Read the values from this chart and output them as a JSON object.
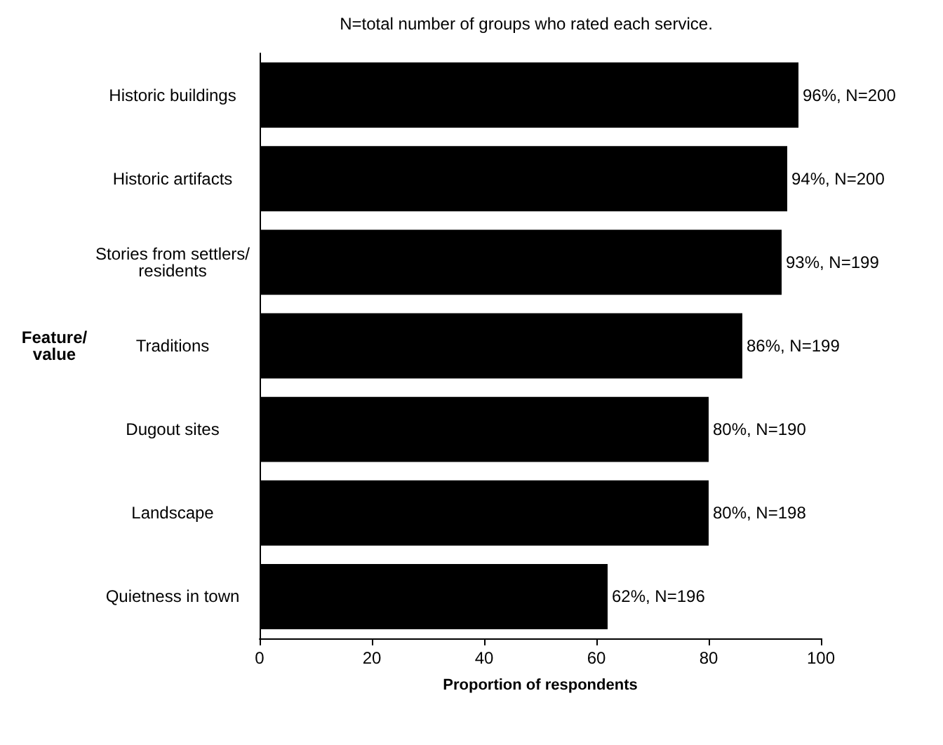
{
  "chart_data": {
    "type": "bar",
    "orientation": "horizontal",
    "title": "N=total number of groups who rated each service.",
    "xlabel": "Proportion of respondents",
    "ylabel": "Feature/ value",
    "categories": [
      "Historic buildings",
      "Historic artifacts",
      "Stories from settlers/residents",
      "Traditions",
      "Dugout sites",
      "Landscape",
      "Quietness in town"
    ],
    "values": [
      96,
      94,
      93,
      86,
      80,
      80,
      62
    ],
    "value_labels": [
      "96%, N=200",
      "94%, N=200",
      "93%, N=199",
      "86%, N=199",
      "80%, N=190",
      "80%, N=198",
      "62%, N=196"
    ],
    "color": "#000000",
    "xlim": [
      0,
      100
    ],
    "xticks": [
      0,
      20,
      40,
      60,
      80,
      100
    ]
  }
}
